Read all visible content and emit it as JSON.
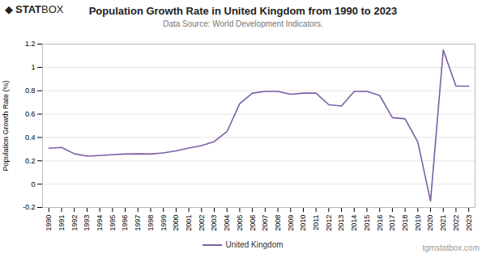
{
  "chart_data": {
    "type": "line",
    "title": "Population Growth Rate in United Kingdom from 1990 to 2023",
    "subtitle": "Data Source: World Development Indicators.",
    "y_label": "Population Growth Rate (%)",
    "logo": [
      "◆",
      "STAT",
      "BOX"
    ],
    "watermark": "tgmstatbox.com",
    "x": [
      1990,
      1991,
      1992,
      1993,
      1994,
      1995,
      1996,
      1997,
      1998,
      1999,
      2000,
      2001,
      2002,
      2003,
      2004,
      2005,
      2006,
      2007,
      2008,
      2009,
      2010,
      2011,
      2012,
      2013,
      2014,
      2015,
      2016,
      2017,
      2018,
      2019,
      2020,
      2021,
      2022,
      2023
    ],
    "series": [
      {
        "name": "United Kingdom",
        "color": "#7B5EA7",
        "values": [
          0.308,
          0.315,
          0.26,
          0.24,
          0.245,
          0.252,
          0.258,
          0.26,
          0.258,
          0.268,
          0.285,
          0.31,
          0.33,
          0.365,
          0.45,
          0.69,
          0.78,
          0.795,
          0.795,
          0.77,
          0.78,
          0.78,
          0.68,
          0.67,
          0.795,
          0.795,
          0.76,
          0.57,
          0.56,
          0.36,
          -0.145,
          1.15,
          0.84,
          0.84
        ]
      }
    ],
    "xlim": [
      1989.5,
      2023.5
    ],
    "xticks": [
      1990,
      1991,
      1992,
      1993,
      1994,
      1995,
      1996,
      1997,
      1998,
      1999,
      2000,
      2001,
      2002,
      2003,
      2004,
      2005,
      2006,
      2007,
      2008,
      2009,
      2010,
      2011,
      2012,
      2013,
      2014,
      2015,
      2016,
      2017,
      2018,
      2019,
      2020,
      2021,
      2022,
      2023
    ],
    "ylim": [
      -0.2,
      1.2
    ],
    "yticks": [
      -0.2,
      0,
      0.2,
      0.4,
      0.6,
      0.8,
      1,
      1.2
    ],
    "grid": true,
    "legend": "bottom"
  }
}
